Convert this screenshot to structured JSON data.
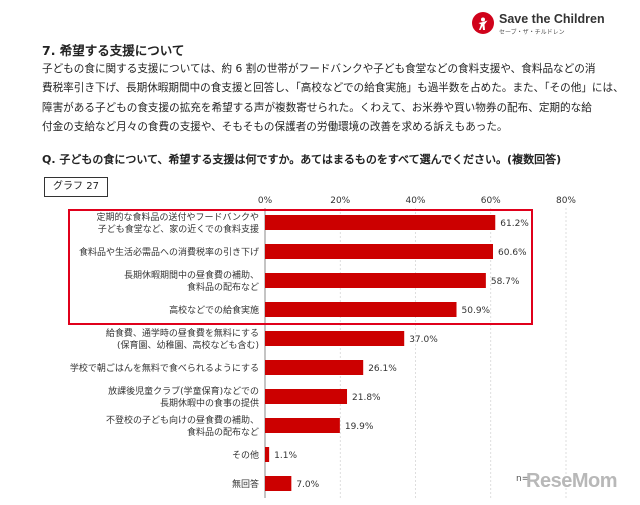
{
  "logo": {
    "name": "Save the Children",
    "sub": "セーブ・ザ・チルドレン"
  },
  "section_title": "7. 希望する支援について",
  "body_lines": [
    "子どもの食に関する支援については、約 6 割の世帯がフードバンクや子ども食堂などの食料支援や、食料品などの消",
    "費税率引き下げ、長期休暇期間中の食支援と回答し、「高校などでの給食実施」も過半数を占めた。また、「その他」には、",
    "障害がある子どもの食支援の拡充を希望する声が複数寄せられた。くわえて、お米券や買い物券の配布、定期的な給",
    "付金の支給など月々の食費の支援や、そもそもの保護者の労働環境の改善を求める訴えもあった。"
  ],
  "question": "Q. 子どもの食について、希望する支援は何ですか。あてはまるものをすべて選んでください。(複数回答)",
  "graph_tag": "グラフ 27",
  "n_label": "n=",
  "watermark": "ReseMom",
  "colors": {
    "bar": "#cc0000",
    "highlight": "#e0001b",
    "axis": "#888888",
    "grid": "#d0d0d0"
  },
  "chart_data": {
    "type": "bar",
    "orientation": "horizontal",
    "xlim": [
      0,
      80
    ],
    "xticks": [
      "0%",
      "20%",
      "40%",
      "60%",
      "80%"
    ],
    "grid": true,
    "highlighted_categories": 4,
    "categories": [
      [
        "定期的な食料品の送付やフードバンクや",
        "子ども食堂など、家の近くでの食料支援"
      ],
      [
        "食料品や生活必需品への消費税率の引き下げ"
      ],
      [
        "長期休暇期間中の昼食費の補助、",
        "食料品の配布など"
      ],
      [
        "高校などでの給食実施"
      ],
      [
        "給食費、通学時の昼食費を無料にする",
        "(保育園、幼稚園、高校なども含む)"
      ],
      [
        "学校で朝ごはんを無料で食べられるようにする"
      ],
      [
        "放課後児童クラブ(学童保育)などでの",
        "長期休暇中の食事の提供"
      ],
      [
        "不登校の子ども向けの昼食費の補助、",
        "食料品の配布など"
      ],
      [
        "その他"
      ],
      [
        "無回答"
      ]
    ],
    "values": [
      61.2,
      60.6,
      58.7,
      50.9,
      37.0,
      26.1,
      21.8,
      19.9,
      1.1,
      7.0
    ],
    "value_labels": [
      "61.2%",
      "60.6%",
      "58.7%",
      "50.9%",
      "37.0%",
      "26.1%",
      "21.8%",
      "19.9%",
      "1.1%",
      "7.0%"
    ]
  }
}
